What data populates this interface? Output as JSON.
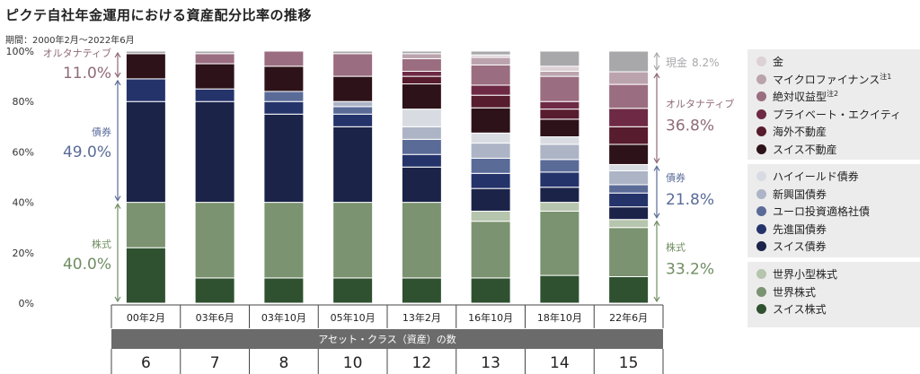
{
  "title": "ピクテ自社年金運用における資産配分比率の推移",
  "subtitle": "期間：2000年2月～2022年6月",
  "chart_data": {
    "type": "bar",
    "stacked": true,
    "ylim": [
      0,
      100
    ],
    "yticks": [
      "0%",
      "20%",
      "40%",
      "60%",
      "80%",
      "100%"
    ],
    "categories": [
      "00年2月",
      "03年6月",
      "03年10月",
      "05年10月",
      "13年2月",
      "16年10月",
      "18年10月",
      "22年6月"
    ],
    "asset_class_row_label": "アセット・クラス（資産）の数",
    "asset_class_counts": [
      "6",
      "7",
      "8",
      "10",
      "12",
      "13",
      "14",
      "15"
    ],
    "series": [
      {
        "name": "スイス株式",
        "color": "#2f5130",
        "values": [
          22,
          10,
          10,
          10,
          10,
          10,
          11,
          10.5
        ]
      },
      {
        "name": "世界株式",
        "color": "#7b9370",
        "values": [
          18,
          30,
          30,
          30,
          30,
          22.5,
          25.5,
          19.5
        ]
      },
      {
        "name": "世界小型株式",
        "color": "#b6c5ad",
        "values": [
          0,
          0,
          0,
          0,
          0,
          4,
          3.5,
          3.2
        ]
      },
      {
        "name": "スイス債券",
        "color": "#1b2349",
        "values": [
          40,
          40,
          35,
          30,
          14,
          9,
          6,
          5
        ]
      },
      {
        "name": "先進国債券",
        "color": "#25336b",
        "values": [
          9,
          5,
          5,
          5,
          5,
          6,
          6,
          5.5
        ]
      },
      {
        "name": "ユーロ投資適格社債",
        "color": "#5a6b98",
        "values": [
          0,
          0,
          4,
          3,
          6,
          6,
          5,
          3.3
        ]
      },
      {
        "name": "新興国債券",
        "color": "#acb4c6",
        "values": [
          0,
          0,
          0,
          2,
          5,
          6,
          6,
          5.5
        ]
      },
      {
        "name": "ハイイールド債券",
        "color": "#d8dce2",
        "values": [
          0,
          0,
          0,
          0,
          7,
          4,
          3,
          2.5
        ]
      },
      {
        "name": "スイス不動産",
        "color": "#2e1219",
        "values": [
          10,
          10,
          10,
          10,
          10,
          10,
          7,
          8
        ]
      },
      {
        "name": "海外不動産",
        "color": "#571c2e",
        "values": [
          0,
          0,
          0,
          0,
          3,
          5,
          4,
          7
        ]
      },
      {
        "name": "プライベート・エクイティ",
        "color": "#6e2a45",
        "values": [
          0,
          0,
          0,
          0,
          2,
          4,
          3,
          7.3
        ]
      },
      {
        "name": "絶対収益型",
        "color": "#9b6d80",
        "values": [
          0,
          4,
          6,
          9,
          5,
          8,
          10,
          9.5
        ]
      },
      {
        "name": "マイクロファイナンス",
        "color": "#bba3ad",
        "values": [
          0,
          0,
          0,
          0,
          2,
          3,
          2,
          5
        ]
      },
      {
        "name": "金",
        "color": "#dcd1d5",
        "values": [
          0,
          0,
          0,
          0,
          0,
          1,
          2,
          0
        ]
      },
      {
        "name": "現金",
        "color": "#a8a8ab",
        "values": [
          1,
          1,
          0,
          1,
          1,
          1.5,
          6,
          8.2
        ]
      }
    ],
    "annotations_left": [
      {
        "label": "オルタナティブ",
        "value": "11.0%",
        "color": "#8f6b79",
        "range": [
          89,
          100
        ]
      },
      {
        "label": "債券",
        "value": "49.0%",
        "color": "#5a6b98",
        "range": [
          40,
          89
        ]
      },
      {
        "label": "株式",
        "value": "40.0%",
        "color": "#6f8d62",
        "range": [
          0,
          40
        ]
      }
    ],
    "annotations_right": [
      {
        "label": "現金",
        "value": "8.2%",
        "color": "#a8a8ab",
        "range": [
          91.8,
          100
        ]
      },
      {
        "label": "オルタナティブ",
        "value": "36.8%",
        "color": "#8f6b79",
        "range": [
          55,
          91.8
        ]
      },
      {
        "label": "債券",
        "value": "21.8%",
        "color": "#5a6b98",
        "range": [
          33.2,
          55
        ]
      },
      {
        "label": "株式",
        "value": "33.2%",
        "color": "#6f8d62",
        "range": [
          0,
          33.2
        ]
      }
    ],
    "legend_groups": [
      [
        {
          "name": "金",
          "color": "#dcd1d5"
        },
        {
          "name": "マイクロファイナンス",
          "sup": "注1",
          "color": "#bba3ad"
        },
        {
          "name": "絶対収益型",
          "sup": "注2",
          "color": "#9b6d80"
        },
        {
          "name": "プライベート・エクイティ",
          "color": "#6e2a45"
        },
        {
          "name": "海外不動産",
          "color": "#571c2e"
        },
        {
          "name": "スイス不動産",
          "color": "#2e1219"
        }
      ],
      [
        {
          "name": "ハイイールド債券",
          "color": "#d8dce2"
        },
        {
          "name": "新興国債券",
          "color": "#acb4c6"
        },
        {
          "name": "ユーロ投資適格社債",
          "color": "#5a6b98"
        },
        {
          "name": "先進国債券",
          "color": "#25336b"
        },
        {
          "name": "スイス債券",
          "color": "#1b2349"
        }
      ],
      [
        {
          "name": "世界小型株式",
          "color": "#b6c5ad"
        },
        {
          "name": "世界株式",
          "color": "#7b9370"
        },
        {
          "name": "スイス株式",
          "color": "#2f5130"
        }
      ]
    ]
  }
}
